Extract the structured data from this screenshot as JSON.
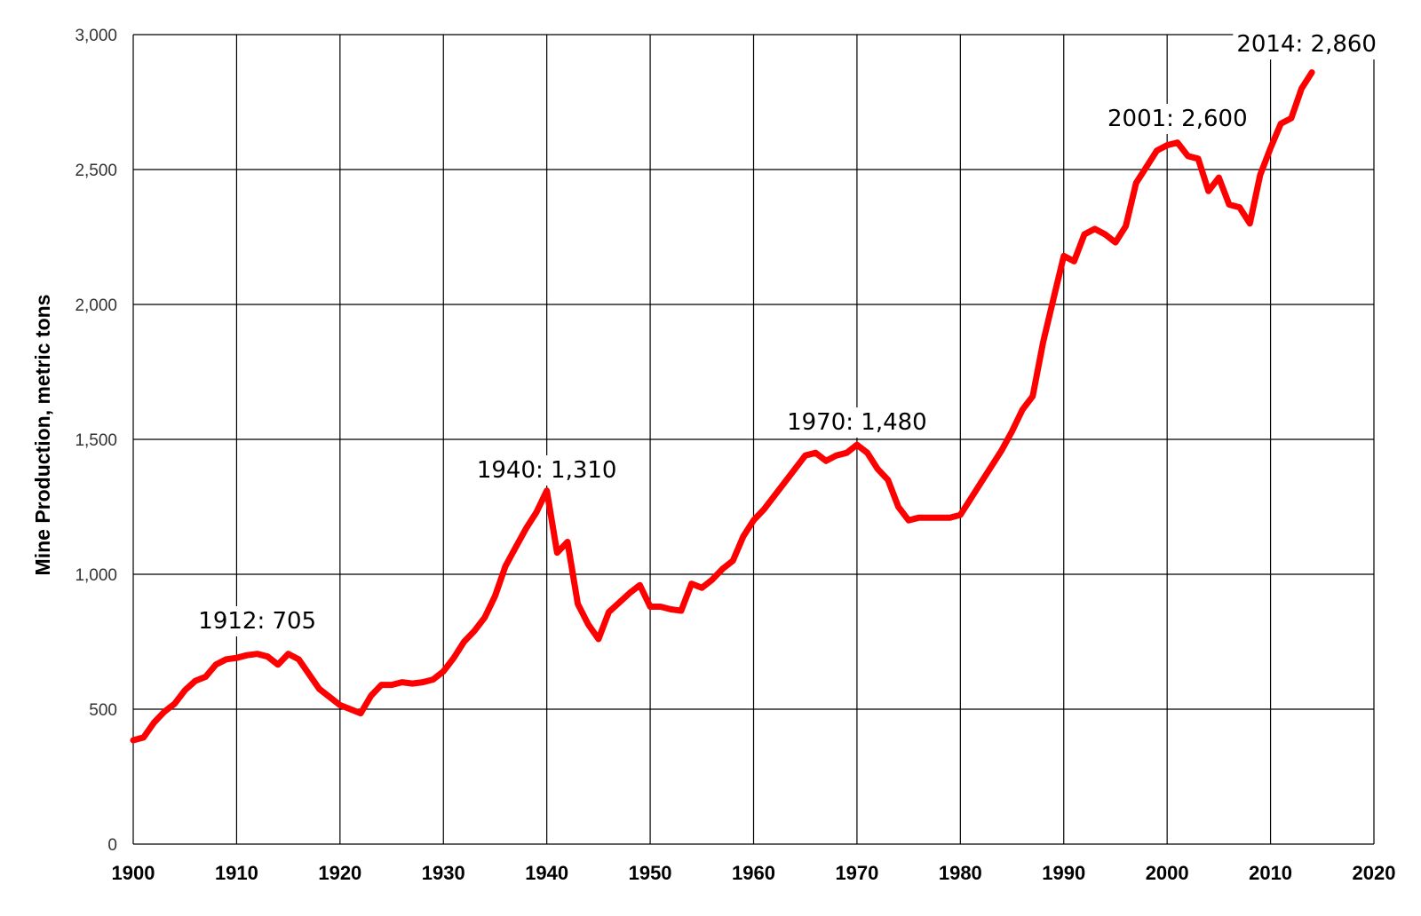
{
  "chart_data": {
    "type": "line",
    "title": "",
    "xlabel": "",
    "ylabel": "Mine Production, metric tons",
    "xlim": [
      1900,
      2020
    ],
    "ylim": [
      0,
      3000
    ],
    "x_ticks": [
      "1900",
      "1910",
      "1920",
      "1930",
      "1940",
      "1950",
      "1960",
      "1970",
      "1980",
      "1990",
      "2000",
      "2010",
      "2020"
    ],
    "y_ticks": [
      "0",
      "500",
      "1,000",
      "1,500",
      "2,000",
      "2,500",
      "3,000"
    ],
    "grid": true,
    "line_color": "#ff0000",
    "series": [
      {
        "x": [
          1900,
          1901,
          1902,
          1903,
          1904,
          1905,
          1906,
          1907,
          1908,
          1909,
          1910,
          1911,
          1912,
          1913,
          1914,
          1915,
          1916,
          1917,
          1918,
          1919,
          1920,
          1921,
          1922,
          1923,
          1924,
          1925,
          1926,
          1927,
          1928,
          1929,
          1930,
          1931,
          1932,
          1933,
          1934,
          1935,
          1936,
          1937,
          1938,
          1939,
          1940,
          1941,
          1942,
          1943,
          1944,
          1945,
          1946,
          1947,
          1948,
          1949,
          1950,
          1951,
          1952,
          1953,
          1954,
          1955,
          1956,
          1957,
          1958,
          1959,
          1960,
          1961,
          1962,
          1963,
          1964,
          1965,
          1966,
          1967,
          1968,
          1969,
          1970,
          1971,
          1972,
          1973,
          1974,
          1975,
          1976,
          1977,
          1978,
          1979,
          1980,
          1981,
          1982,
          1983,
          1984,
          1985,
          1986,
          1987,
          1988,
          1989,
          1990,
          1991,
          1992,
          1993,
          1994,
          1995,
          1996,
          1997,
          1998,
          1999,
          2000,
          2001,
          2002,
          2003,
          2004,
          2005,
          2006,
          2007,
          2008,
          2009,
          2010,
          2011,
          2012,
          2013,
          2014
        ],
        "values": [
          385,
          395,
          450,
          490,
          520,
          570,
          605,
          620,
          665,
          685,
          690,
          700,
          705,
          695,
          665,
          705,
          685,
          630,
          575,
          545,
          515,
          500,
          485,
          550,
          590,
          590,
          600,
          595,
          600,
          610,
          640,
          690,
          750,
          790,
          840,
          920,
          1030,
          1100,
          1170,
          1230,
          1310,
          1080,
          1120,
          890,
          815,
          760,
          860,
          895,
          930,
          960,
          880,
          880,
          870,
          865,
          965,
          950,
          980,
          1020,
          1050,
          1140,
          1200,
          1240,
          1290,
          1340,
          1390,
          1440,
          1450,
          1420,
          1440,
          1450,
          1480,
          1450,
          1390,
          1350,
          1250,
          1200,
          1210,
          1210,
          1210,
          1210,
          1220,
          1280,
          1340,
          1400,
          1460,
          1530,
          1610,
          1660,
          1860,
          2020,
          2180,
          2160,
          2260,
          2280,
          2260,
          2230,
          2290,
          2450,
          2510,
          2570,
          2590,
          2600,
          2550,
          2540,
          2420,
          2470,
          2370,
          2360,
          2300,
          2480,
          2580,
          2670,
          2690,
          2800,
          2860
        ]
      }
    ],
    "annotations": [
      {
        "label": "1912:  705",
        "x": 1912,
        "y": 705
      },
      {
        "label": "1940:  1,310",
        "x": 1940,
        "y": 1310
      },
      {
        "label": "1970:  1,480",
        "x": 1970,
        "y": 1480
      },
      {
        "label": "2001:  2,600",
        "x": 2001,
        "y": 2600
      },
      {
        "label": "2014:  2,860",
        "x": 2014,
        "y": 2860
      }
    ]
  }
}
